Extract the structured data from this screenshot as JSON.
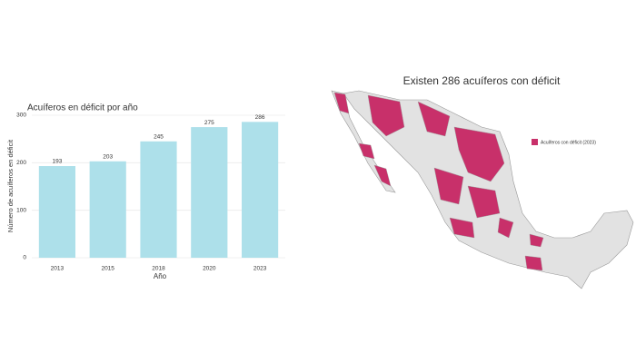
{
  "chart_data": {
    "type": "bar",
    "title": "Acuíferos en déficit por año",
    "categories": [
      "2013",
      "2015",
      "2018",
      "2020",
      "2023"
    ],
    "values": [
      193,
      203,
      245,
      275,
      286
    ],
    "color": "#ade0ea",
    "xlabel": "Año",
    "ylabel": "Número de acuíferos en déficit",
    "ylim": [
      0,
      300
    ],
    "yticks": [
      0,
      100,
      200,
      300
    ],
    "grid": true
  },
  "map": {
    "title": "Existen 286 acuíferos con déficit",
    "legend": "Acuíferos con déficit (2023)",
    "legend_color": "#c8306a"
  }
}
